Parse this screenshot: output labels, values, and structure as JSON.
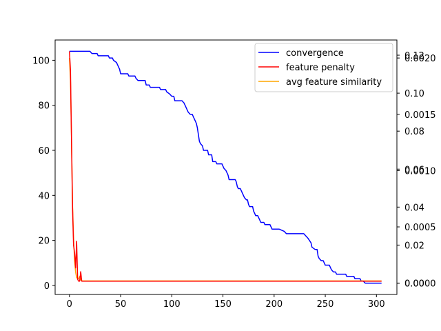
{
  "chart_data": {
    "type": "line",
    "title": "",
    "xlabel": "",
    "ylabel": "",
    "xlim": [
      -14,
      320
    ],
    "ylim": [
      -4,
      109
    ],
    "x_ticks": [
      0,
      50,
      100,
      150,
      200,
      250,
      300
    ],
    "y_ticks": [
      0,
      20,
      40,
      60,
      80,
      100
    ],
    "right_axis_1": {
      "color": "red",
      "ylim": [
        -0.006,
        0.128
      ],
      "ticks": [
        0.0,
        0.02,
        0.04,
        0.06,
        0.08,
        0.1,
        0.12
      ],
      "tick_labels": [
        "0.00",
        "0.02",
        "0.04",
        "0.06",
        "0.08",
        "0.10",
        "0.12"
      ]
    },
    "right_axis_2": {
      "color": "orange",
      "ylim": [
        -0.0001,
        0.00216
      ],
      "ticks": [
        0.0,
        0.0005,
        0.001,
        0.0015,
        0.002
      ],
      "tick_labels": [
        "0.0000",
        "0.0005",
        "0.0010",
        "0.0015",
        "0.0020"
      ]
    },
    "legend_position": "top-right",
    "grid": false,
    "series": [
      {
        "name": "convergence",
        "color": "#0000ff",
        "axis": "left",
        "points": [
          [
            0,
            104
          ],
          [
            20,
            104
          ],
          [
            22,
            103
          ],
          [
            27,
            103
          ],
          [
            28,
            102
          ],
          [
            38,
            102
          ],
          [
            39,
            101
          ],
          [
            42,
            101
          ],
          [
            43,
            100
          ],
          [
            46,
            99
          ],
          [
            47,
            98
          ],
          [
            49,
            96
          ],
          [
            50,
            94
          ],
          [
            57,
            94
          ],
          [
            58,
            93
          ],
          [
            64,
            93
          ],
          [
            65,
            92
          ],
          [
            67,
            91
          ],
          [
            74,
            91
          ],
          [
            75,
            89
          ],
          [
            78,
            89
          ],
          [
            79,
            88
          ],
          [
            88,
            88
          ],
          [
            89,
            87
          ],
          [
            94,
            87
          ],
          [
            95,
            86
          ],
          [
            98,
            85
          ],
          [
            100,
            84
          ],
          [
            102,
            84
          ],
          [
            103,
            82
          ],
          [
            110,
            82
          ],
          [
            112,
            81
          ],
          [
            114,
            79
          ],
          [
            116,
            77
          ],
          [
            118,
            76
          ],
          [
            120,
            76
          ],
          [
            121,
            75
          ],
          [
            123,
            73
          ],
          [
            124,
            72
          ],
          [
            125,
            70
          ],
          [
            126,
            67
          ],
          [
            127,
            64
          ],
          [
            128,
            63
          ],
          [
            130,
            62
          ],
          [
            131,
            60
          ],
          [
            135,
            60
          ],
          [
            136,
            58
          ],
          [
            139,
            58
          ],
          [
            140,
            55
          ],
          [
            143,
            55
          ],
          [
            144,
            54
          ],
          [
            149,
            54
          ],
          [
            151,
            52
          ],
          [
            153,
            51
          ],
          [
            155,
            49
          ],
          [
            156,
            47
          ],
          [
            162,
            47
          ],
          [
            163,
            46
          ],
          [
            164,
            44
          ],
          [
            165,
            43
          ],
          [
            167,
            43
          ],
          [
            168,
            42
          ],
          [
            169,
            41
          ],
          [
            170,
            40
          ],
          [
            171,
            39
          ],
          [
            173,
            38
          ],
          [
            174,
            38
          ],
          [
            175,
            36
          ],
          [
            176,
            35
          ],
          [
            179,
            35
          ],
          [
            180,
            33
          ],
          [
            181,
            32
          ],
          [
            182,
            31
          ],
          [
            184,
            31
          ],
          [
            186,
            29
          ],
          [
            187,
            28
          ],
          [
            190,
            28
          ],
          [
            191,
            27
          ],
          [
            196,
            27
          ],
          [
            197,
            26
          ],
          [
            198,
            25
          ],
          [
            205,
            25
          ],
          [
            210,
            24
          ],
          [
            212,
            23
          ],
          [
            229,
            23
          ],
          [
            231,
            22
          ],
          [
            233,
            21
          ],
          [
            236,
            19
          ],
          [
            237,
            17
          ],
          [
            240,
            16
          ],
          [
            242,
            16
          ],
          [
            243,
            13
          ],
          [
            244,
            12
          ],
          [
            246,
            11
          ],
          [
            248,
            11
          ],
          [
            249,
            10
          ],
          [
            250,
            9
          ],
          [
            254,
            9
          ],
          [
            255,
            8
          ],
          [
            256,
            7
          ],
          [
            258,
            6
          ],
          [
            260,
            6
          ],
          [
            261,
            5
          ],
          [
            270,
            5
          ],
          [
            271,
            4
          ],
          [
            278,
            4
          ],
          [
            279,
            3
          ],
          [
            284,
            3
          ],
          [
            285,
            2
          ],
          [
            287,
            2
          ],
          [
            289,
            1
          ],
          [
            305,
            1
          ]
        ]
      },
      {
        "name": "feature penalty",
        "color": "#ff0000",
        "axis": "right1",
        "points": [
          [
            0,
            0.122
          ],
          [
            1,
            0.112
          ],
          [
            2,
            0.075
          ],
          [
            3,
            0.04
          ],
          [
            4,
            0.02
          ],
          [
            5,
            0.016
          ],
          [
            6,
            0.008
          ],
          [
            7,
            0.022
          ],
          [
            8,
            0.002
          ],
          [
            9,
            0.001
          ],
          [
            10,
            0.001
          ],
          [
            11,
            0.006
          ],
          [
            12,
            0.001
          ],
          [
            305,
            0.001
          ]
        ]
      },
      {
        "name": "avg feature similarity",
        "color": "#ffa500",
        "axis": "right2",
        "points": [
          [
            0,
            0.002
          ],
          [
            1,
            0.0018
          ],
          [
            2,
            0.0013
          ],
          [
            3,
            0.0007
          ],
          [
            4,
            0.0004
          ],
          [
            5,
            0.0002
          ],
          [
            6,
            0.0001
          ],
          [
            7,
            5e-05
          ],
          [
            8,
            4e-05
          ],
          [
            9,
            4e-05
          ],
          [
            10,
            6e-05
          ],
          [
            11,
            3e-05
          ],
          [
            12,
            2e-05
          ],
          [
            305,
            2e-05
          ]
        ]
      }
    ]
  }
}
